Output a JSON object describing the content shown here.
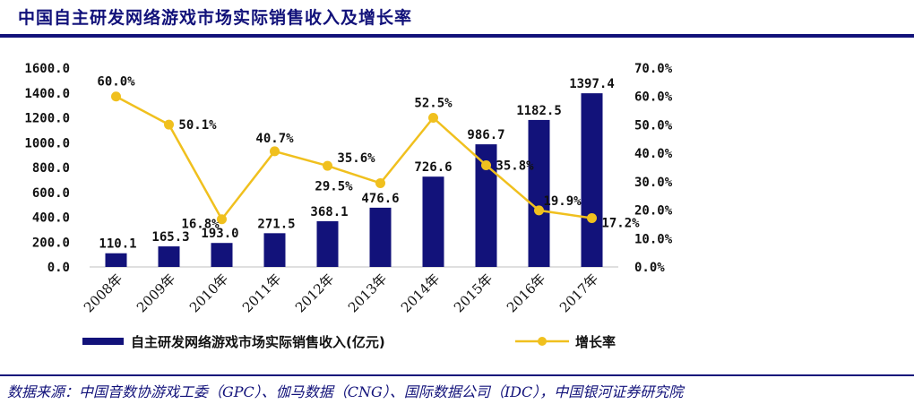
{
  "header": {
    "title": "中国自主研发网络游戏市场实际销售收入及增长率"
  },
  "footer": {
    "source": "数据来源：中国音数协游戏工委（GPC）、伽马数据（CNG）、国际数据公司（IDC），中国银河证券研究院"
  },
  "colors": {
    "bar": "#12127a",
    "line": "#f0c01e",
    "rule": "#12127a"
  },
  "chart_data": {
    "type": "bar",
    "categories": [
      "2008年",
      "2009年",
      "2010年",
      "2011年",
      "2012年",
      "2013年",
      "2014年",
      "2015年",
      "2016年",
      "2017年"
    ],
    "series": [
      {
        "name": "自主研发网络游戏市场实际销售收入(亿元)",
        "type": "bar",
        "axis": "left",
        "values": [
          110.1,
          165.3,
          193.0,
          271.5,
          368.1,
          476.6,
          726.6,
          986.7,
          1182.5,
          1397.4
        ],
        "labels": [
          "110.1",
          "165.3",
          "193.0",
          "271.5",
          "368.1",
          "476.6",
          "726.6",
          "986.7",
          "1182.5",
          "1397.4"
        ]
      },
      {
        "name": "增长率",
        "type": "line",
        "axis": "right",
        "values": [
          60.0,
          50.1,
          16.8,
          40.7,
          35.6,
          29.5,
          52.5,
          35.8,
          19.9,
          17.2
        ],
        "labels": [
          "60.0%",
          "50.1%",
          "16.8%",
          "40.7%",
          "35.6%",
          "29.5%",
          "52.5%",
          "35.8%",
          "19.9%",
          "17.2%"
        ]
      }
    ],
    "y_left": {
      "min": 0,
      "max": 1600,
      "step": 200,
      "ticks": [
        "0.0",
        "200.0",
        "400.0",
        "600.0",
        "800.0",
        "1000.0",
        "1200.0",
        "1400.0",
        "1600.0"
      ]
    },
    "y_right": {
      "min": 0,
      "max": 70,
      "step": 10,
      "ticks": [
        "0.0%",
        "10.0%",
        "20.0%",
        "30.0%",
        "40.0%",
        "50.0%",
        "60.0%",
        "70.0%"
      ]
    },
    "legend": {
      "position": "bottom",
      "bar_label": "自主研发网络游戏市场实际销售收入(亿元)",
      "line_label": "增长率"
    },
    "grid": false
  }
}
